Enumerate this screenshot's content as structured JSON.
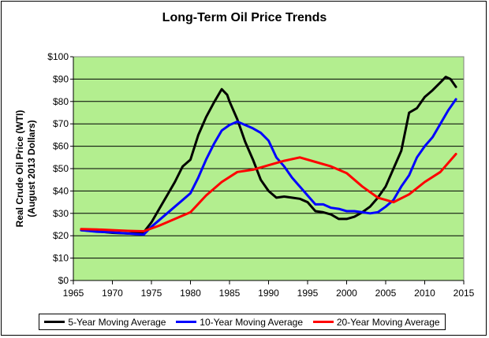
{
  "chart_data": {
    "type": "line",
    "title": "Long-Term Oil Price Trends",
    "xlabel": "",
    "ylabel_line1": "Real Crude Oil Price (WTI)",
    "ylabel_line2": "(August 2013 Dollars)",
    "xlim": [
      1965,
      2015
    ],
    "ylim": [
      0,
      100
    ],
    "x_ticks": [
      1965,
      1970,
      1975,
      1980,
      1985,
      1990,
      1995,
      2000,
      2005,
      2010,
      2015
    ],
    "y_ticks": [
      0,
      10,
      20,
      30,
      40,
      50,
      60,
      70,
      80,
      90,
      100
    ],
    "y_tick_labels": [
      "$0",
      "$10",
      "$20",
      "$30",
      "$40",
      "$50",
      "$60",
      "$70",
      "$80",
      "$90",
      "$100"
    ],
    "grid": "horizontal",
    "plot_background": "#b3ee8f",
    "legend_position": "bottom",
    "series": [
      {
        "name": "5-Year Moving Average",
        "color": "#000000",
        "points": [
          [
            1966,
            22.5
          ],
          [
            1968,
            22
          ],
          [
            1970,
            21.3
          ],
          [
            1972,
            21
          ],
          [
            1974,
            21.5
          ],
          [
            1975,
            26
          ],
          [
            1976,
            32
          ],
          [
            1977,
            38
          ],
          [
            1978,
            44
          ],
          [
            1979,
            51
          ],
          [
            1980,
            54
          ],
          [
            1981,
            65
          ],
          [
            1982,
            73
          ],
          [
            1983,
            79.5
          ],
          [
            1984,
            85.5
          ],
          [
            1984.7,
            83
          ],
          [
            1985,
            80
          ],
          [
            1986,
            72
          ],
          [
            1987,
            62
          ],
          [
            1988,
            54
          ],
          [
            1989,
            45
          ],
          [
            1990,
            40
          ],
          [
            1991,
            37
          ],
          [
            1992,
            37.5
          ],
          [
            1993,
            37
          ],
          [
            1994,
            36.5
          ],
          [
            1995,
            35
          ],
          [
            1996,
            31
          ],
          [
            1997,
            30.5
          ],
          [
            1998,
            29.5
          ],
          [
            1999,
            27.5
          ],
          [
            2000,
            27.5
          ],
          [
            2001,
            28.5
          ],
          [
            2002,
            30.5
          ],
          [
            2003,
            33
          ],
          [
            2004,
            37
          ],
          [
            2005,
            42
          ],
          [
            2006,
            50
          ],
          [
            2007,
            58
          ],
          [
            2008,
            75
          ],
          [
            2009,
            77
          ],
          [
            2010,
            82
          ],
          [
            2011,
            85
          ],
          [
            2012,
            88.5
          ],
          [
            2012.7,
            91
          ],
          [
            2013.3,
            90
          ],
          [
            2014,
            86.5
          ]
        ]
      },
      {
        "name": "10-Year Moving Average",
        "color": "#0000ff",
        "points": [
          [
            1966,
            22.5
          ],
          [
            1968,
            21.8
          ],
          [
            1970,
            21.5
          ],
          [
            1972,
            21
          ],
          [
            1974,
            20.5
          ],
          [
            1975,
            24
          ],
          [
            1976,
            27
          ],
          [
            1977,
            30
          ],
          [
            1978,
            33
          ],
          [
            1979,
            36
          ],
          [
            1980,
            39
          ],
          [
            1981,
            46
          ],
          [
            1982,
            54
          ],
          [
            1983,
            61
          ],
          [
            1984,
            67
          ],
          [
            1985,
            69.5
          ],
          [
            1986,
            71
          ],
          [
            1987,
            69.5
          ],
          [
            1988,
            68
          ],
          [
            1989,
            66
          ],
          [
            1990,
            62.5
          ],
          [
            1991,
            55
          ],
          [
            1992,
            51
          ],
          [
            1993,
            46
          ],
          [
            1994,
            42
          ],
          [
            1995,
            38
          ],
          [
            1996,
            34
          ],
          [
            1997,
            34
          ],
          [
            1998,
            32.5
          ],
          [
            1999,
            32
          ],
          [
            2000,
            31
          ],
          [
            2001,
            31
          ],
          [
            2002,
            30.5
          ],
          [
            2003,
            30
          ],
          [
            2004,
            30.5
          ],
          [
            2005,
            33
          ],
          [
            2006,
            36
          ],
          [
            2007,
            42
          ],
          [
            2008,
            47
          ],
          [
            2009,
            55
          ],
          [
            2010,
            60
          ],
          [
            2011,
            64
          ],
          [
            2012,
            70
          ],
          [
            2013,
            76
          ],
          [
            2014,
            81
          ]
        ]
      },
      {
        "name": "20-Year Moving Average",
        "color": "#ff0000",
        "points": [
          [
            1966,
            23
          ],
          [
            1968,
            22.8
          ],
          [
            1970,
            22.5
          ],
          [
            1972,
            22.2
          ],
          [
            1974,
            22
          ],
          [
            1976,
            24.5
          ],
          [
            1978,
            27.5
          ],
          [
            1980,
            30.5
          ],
          [
            1982,
            38
          ],
          [
            1984,
            44
          ],
          [
            1986,
            48.5
          ],
          [
            1988,
            49.5
          ],
          [
            1990,
            51.5
          ],
          [
            1992,
            53.5
          ],
          [
            1994,
            55
          ],
          [
            1996,
            53
          ],
          [
            1998,
            51
          ],
          [
            2000,
            48
          ],
          [
            2002,
            42
          ],
          [
            2004,
            37
          ],
          [
            2006,
            35
          ],
          [
            2008,
            38.5
          ],
          [
            2010,
            44
          ],
          [
            2012,
            48.5
          ],
          [
            2014,
            56.5
          ]
        ]
      }
    ]
  }
}
